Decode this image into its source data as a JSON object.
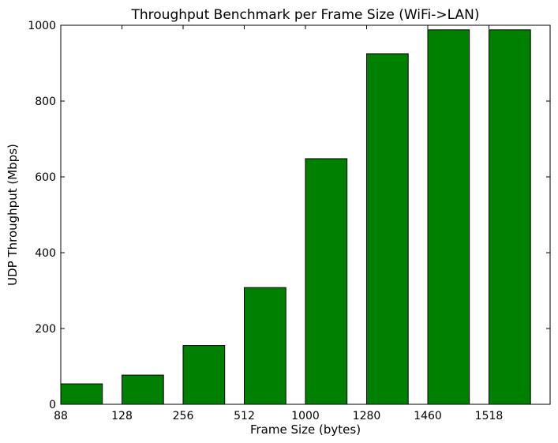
{
  "chart_data": {
    "type": "bar",
    "title": "Throughput Benchmark per Frame Size (WiFi->LAN)",
    "xlabel": "Frame Size (bytes)",
    "ylabel": "UDP Throughput (Mbps)",
    "categories": [
      "88",
      "128",
      "256",
      "512",
      "1000",
      "1280",
      "1460",
      "1518"
    ],
    "values": [
      54,
      77,
      155,
      308,
      648,
      925,
      988,
      988
    ],
    "ylim": [
      0,
      1000
    ],
    "yticks": [
      "0",
      "200",
      "400",
      "600",
      "800",
      "1000"
    ],
    "bar_color": "#008000",
    "grid": false,
    "legend": "none"
  }
}
